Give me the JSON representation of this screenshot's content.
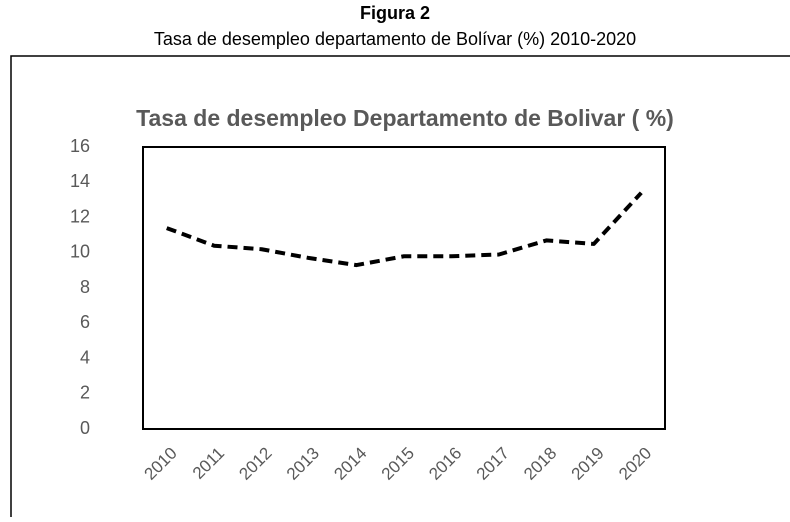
{
  "figure_label": "Figura 2",
  "caption": "Tasa de desempleo departamento de Bolívar (%) 2010-2020",
  "chart_data": {
    "type": "line",
    "title": "Tasa de desempleo Departamento de Bolivar ( %)",
    "categories": [
      "2010",
      "2011",
      "2012",
      "2013",
      "2014",
      "2015",
      "2016",
      "2017",
      "2018",
      "2019",
      "2020"
    ],
    "values": [
      11.4,
      10.4,
      10.2,
      9.7,
      9.3,
      9.8,
      9.8,
      9.9,
      10.7,
      10.5,
      13.4
    ],
    "color": "#000000",
    "line_style": "dashed",
    "ylim": [
      0,
      16
    ],
    "yticks": [
      0,
      2,
      4,
      6,
      8,
      10,
      12,
      14,
      16
    ],
    "grid": false
  }
}
